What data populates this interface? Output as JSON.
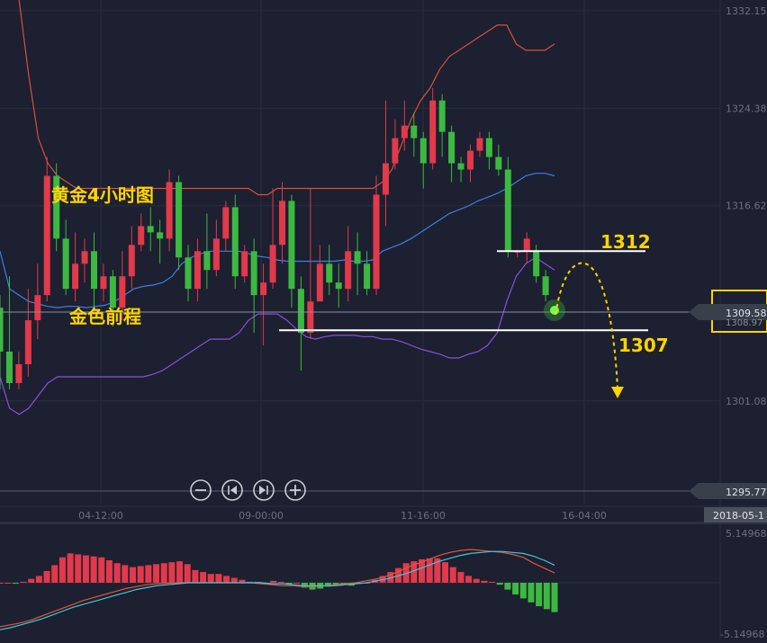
{
  "chart_data": {
    "type": "candlestick",
    "title": "黄金4小时图",
    "watermark": "金色前程",
    "colors": {
      "up": "#e2394b",
      "down": "#3cb940",
      "bg": "#1c2030",
      "annotation": "#ffd400",
      "upper_band": "#d7513a",
      "mid_band": "#3f7fe6",
      "lower_band": "#8a4fe0"
    },
    "y_axis": {
      "range": [
        1292.9,
        1333.0
      ],
      "ticks": [
        "1332.15",
        "1324.38",
        "1316.62",
        "1301.08"
      ]
    },
    "x_axis": {
      "ticks": [
        "04-12:00",
        "09-00:00",
        "11-16:00",
        "16-04:00"
      ]
    },
    "current_price": "1309.58",
    "current_price_secondary": "1308.97",
    "lower_marker": "1295.77",
    "date_stamp": "2018-05-1",
    "annotations": [
      {
        "label": "1312",
        "price": 1313.0
      },
      {
        "label": "1307",
        "price": 1306.7
      }
    ],
    "candles": [
      [
        1308.5,
        1305.0,
        1309.5,
        1302.0
      ],
      [
        1305.0,
        1302.5,
        1311.0,
        1302.0
      ],
      [
        1302.5,
        1304.0,
        1305.0,
        1302.0
      ],
      [
        1304.0,
        1307.5,
        1310.0,
        1303.0
      ],
      [
        1307.5,
        1309.5,
        1312.0,
        1306.0
      ],
      [
        1309.5,
        1319.0,
        1320.5,
        1309.0
      ],
      [
        1319.0,
        1314.0,
        1320.0,
        1313.0
      ],
      [
        1314.0,
        1310.0,
        1315.5,
        1309.5
      ],
      [
        1310.0,
        1312.0,
        1314.5,
        1309.0
      ],
      [
        1312.0,
        1313.0,
        1314.0,
        1310.5
      ],
      [
        1313.0,
        1310.0,
        1314.5,
        1308.5
      ],
      [
        1310.0,
        1311.0,
        1312.0,
        1309.0
      ],
      [
        1311.0,
        1308.5,
        1311.5,
        1307.0
      ],
      [
        1308.5,
        1311.0,
        1313.0,
        1307.5
      ],
      [
        1311.0,
        1313.5,
        1315.0,
        1310.0
      ],
      [
        1313.5,
        1315.0,
        1316.0,
        1313.0
      ],
      [
        1315.0,
        1314.5,
        1316.5,
        1313.0
      ],
      [
        1314.5,
        1314.0,
        1315.5,
        1312.0
      ],
      [
        1314.0,
        1318.5,
        1319.5,
        1313.0
      ],
      [
        1318.5,
        1312.5,
        1319.0,
        1311.5
      ],
      [
        1312.5,
        1310.0,
        1313.5,
        1309.0
      ],
      [
        1310.0,
        1313.0,
        1314.0,
        1309.0
      ],
      [
        1313.0,
        1311.5,
        1316.0,
        1310.0
      ],
      [
        1311.5,
        1314.0,
        1315.5,
        1311.0
      ],
      [
        1314.0,
        1316.5,
        1317.0,
        1313.0
      ],
      [
        1316.5,
        1311.0,
        1317.5,
        1310.0
      ],
      [
        1311.0,
        1313.0,
        1313.5,
        1310.5
      ],
      [
        1313.0,
        1309.5,
        1314.0,
        1306.5
      ],
      [
        1309.5,
        1310.5,
        1312.0,
        1305.5
      ],
      [
        1310.5,
        1313.5,
        1318.0,
        1310.0
      ],
      [
        1313.5,
        1317.0,
        1318.5,
        1312.0
      ],
      [
        1317.0,
        1310.0,
        1317.5,
        1308.5
      ],
      [
        1310.0,
        1306.5,
        1311.0,
        1303.5
      ],
      [
        1306.5,
        1309.0,
        1318.0,
        1306.0
      ],
      [
        1309.0,
        1312.0,
        1313.5,
        1309.0
      ],
      [
        1312.0,
        1310.5,
        1313.5,
        1309.5
      ],
      [
        1310.5,
        1310.0,
        1312.0,
        1308.5
      ],
      [
        1310.0,
        1313.0,
        1315.0,
        1309.0
      ],
      [
        1313.0,
        1312.0,
        1314.5,
        1309.5
      ],
      [
        1312.0,
        1310.0,
        1313.0,
        1309.5
      ],
      [
        1310.0,
        1317.5,
        1319.0,
        1309.5
      ],
      [
        1317.5,
        1320.0,
        1325.0,
        1315.0
      ],
      [
        1320.0,
        1322.0,
        1323.5,
        1319.5
      ],
      [
        1322.0,
        1323.0,
        1325.0,
        1321.0
      ],
      [
        1323.0,
        1322.0,
        1324.0,
        1320.5
      ],
      [
        1322.0,
        1320.0,
        1322.5,
        1318.0
      ],
      [
        1320.0,
        1325.0,
        1326.0,
        1319.5
      ],
      [
        1325.0,
        1322.5,
        1325.5,
        1320.5
      ],
      [
        1322.5,
        1320.0,
        1323.0,
        1318.5
      ],
      [
        1320.0,
        1319.5,
        1320.5,
        1318.5
      ],
      [
        1319.5,
        1321.0,
        1321.5,
        1318.5
      ],
      [
        1321.0,
        1322.0,
        1322.5,
        1320.5
      ],
      [
        1322.0,
        1320.5,
        1322.5,
        1319.5
      ],
      [
        1320.5,
        1319.5,
        1321.5,
        1319.0
      ],
      [
        1319.5,
        1313.0,
        1320.5,
        1312.5
      ],
      [
        1313.0,
        1313.0,
        1313.0,
        1312.5
      ],
      [
        1313.0,
        1314.0,
        1314.5,
        1312.0
      ],
      [
        1313.0,
        1311.0,
        1313.5,
        1310.5
      ],
      [
        1311.0,
        1309.5,
        1311.5,
        1309.0
      ]
    ],
    "upper_band": [
      1339,
      1337,
      1333,
      1327,
      1322,
      1320,
      1319,
      1318.5,
      1318,
      1318,
      1318,
      1318,
      1318,
      1318,
      1318,
      1318,
      1318,
      1318,
      1318,
      1318,
      1318,
      1318,
      1318,
      1318,
      1318,
      1318,
      1318,
      1317.5,
      1317.5,
      1318,
      1318,
      1318,
      1318,
      1318,
      1318,
      1318,
      1318,
      1318,
      1318,
      1318,
      1318.5,
      1319.5,
      1321.5,
      1323.5,
      1325,
      1326,
      1327.5,
      1328.5,
      1329,
      1329.5,
      1330,
      1330.5,
      1331,
      1331,
      1329.5,
      1329,
      1329,
      1329,
      1329.5
    ],
    "mid_band": [
      1313,
      1310,
      1309.5,
      1309,
      1308.8,
      1308.6,
      1308.5,
      1308.6,
      1308.6,
      1308.5,
      1308.6,
      1308.7,
      1309,
      1309.5,
      1310,
      1310.2,
      1310.3,
      1310.5,
      1311,
      1312,
      1312.5,
      1312.8,
      1313,
      1313,
      1313,
      1313,
      1312.8,
      1312.6,
      1312.5,
      1312.3,
      1312.2,
      1312.2,
      1312.2,
      1312.2,
      1312.2,
      1312.2,
      1312.3,
      1312.2,
      1312.2,
      1312.3,
      1313,
      1313.3,
      1313.6,
      1314,
      1314.5,
      1315,
      1315.5,
      1316,
      1316.3,
      1316.6,
      1317,
      1317.3,
      1317.6,
      1318,
      1318.5,
      1319,
      1319.2,
      1319.2,
      1319
    ],
    "lower_band": [
      1303,
      1300.5,
      1300,
      1300.5,
      1301.5,
      1302.5,
      1303,
      1303,
      1303,
      1303,
      1303,
      1303,
      1303,
      1303,
      1303,
      1303,
      1303.2,
      1303.5,
      1304,
      1304.5,
      1305,
      1305.5,
      1306,
      1306,
      1306,
      1306.5,
      1307.5,
      1308,
      1308,
      1308,
      1307.5,
      1306.8,
      1306.2,
      1306,
      1306.2,
      1306.3,
      1306.3,
      1306.3,
      1306.2,
      1306.2,
      1306,
      1306,
      1305.8,
      1305.5,
      1305.2,
      1305,
      1304.8,
      1304.5,
      1304.5,
      1304.8,
      1305,
      1305.5,
      1306.5,
      1309,
      1311,
      1312,
      1312.5,
      1312,
      1311.5
    ],
    "macd": {
      "range": [
        -5.14968,
        5.14968
      ],
      "top_label": "5.14968",
      "bottom_label": "-5.14968",
      "hist": [
        0,
        0,
        -0.1,
        0.1,
        0.4,
        0.7,
        1.2,
        1.8,
        2.6,
        3.0,
        2.9,
        2.8,
        2.7,
        2.6,
        2.3,
        2.0,
        1.8,
        1.6,
        1.7,
        1.8,
        1.9,
        2.0,
        2.1,
        2.2,
        1.9,
        1.3,
        1.1,
        0.9,
        0.9,
        0.7,
        0.5,
        0.3,
        0.1,
        0.1,
        0,
        0.2,
        0.1,
        -0.2,
        0,
        -0.5,
        -0.7,
        -0.6,
        -0.4,
        -0.3,
        -0.2,
        -0.3,
        -0.1,
        0,
        0.3,
        0.7,
        1.1,
        1.5,
        2.0,
        2.2,
        2.4,
        2.5,
        2.5,
        2.1,
        1.6,
        1.1,
        0.7,
        0.4,
        0.2,
        0.1,
        -0.2,
        -0.7,
        -1.2,
        -1.6,
        -2.0,
        -2.4,
        -2.7,
        -3.0
      ],
      "line1": [
        -4.5,
        -4.3,
        -4.1,
        -3.8,
        -3.4,
        -3.0,
        -2.6,
        -2.2,
        -1.8,
        -1.5,
        -1.2,
        -0.9,
        -0.6,
        -0.4,
        -0.2,
        -0.1,
        -0.05,
        0,
        0,
        0,
        0,
        0,
        0,
        0,
        0,
        -0.1,
        -0.2,
        -0.3,
        -0.3,
        -0.4,
        -0.4,
        -0.3,
        -0.2,
        -0.1,
        0,
        0.2,
        0.4,
        0.7,
        1.1,
        1.6,
        2.0,
        2.4,
        2.8,
        3.1,
        3.3,
        3.4,
        3.3,
        3.2,
        3.1,
        2.9,
        2.6,
        2.0,
        1.5,
        1.0
      ],
      "line2": [
        -4.8,
        -4.6,
        -4.3,
        -4.0,
        -3.7,
        -3.3,
        -2.9,
        -2.5,
        -2.2,
        -1.9,
        -1.6,
        -1.3,
        -1.0,
        -0.7,
        -0.5,
        -0.3,
        -0.2,
        -0.1,
        0,
        0,
        0,
        0,
        0,
        0,
        0,
        0,
        -0.1,
        -0.1,
        -0.2,
        -0.3,
        -0.3,
        -0.3,
        -0.3,
        -0.2,
        -0.1,
        0,
        0.2,
        0.4,
        0.7,
        1.0,
        1.4,
        1.8,
        2.2,
        2.5,
        2.8,
        3.0,
        3.1,
        3.2,
        3.2,
        3.1,
        3.0,
        2.7,
        2.3,
        1.8
      ]
    }
  },
  "controls": {
    "zoom_out_icon": "minus-icon",
    "prev_icon": "skip-back-icon",
    "next_icon": "skip-forward-icon",
    "zoom_in_icon": "plus-icon"
  }
}
